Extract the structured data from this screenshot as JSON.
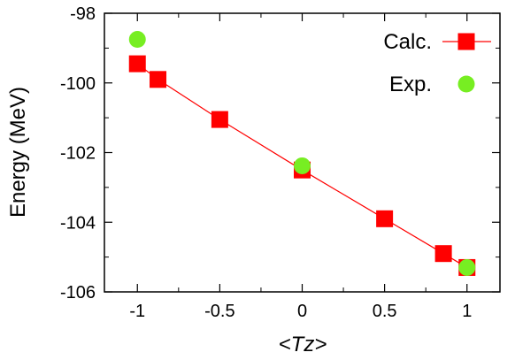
{
  "chart_data": {
    "type": "scatter",
    "xlabel": "<Tz>",
    "ylabel": "Energy (MeV)",
    "xlim": [
      -1.2,
      1.2
    ],
    "ylim": [
      -106,
      -98
    ],
    "xticks": [
      -1,
      -0.5,
      0,
      0.5,
      1
    ],
    "xtick_labels": [
      "-1",
      "-0.5",
      "0",
      "0.5",
      "1"
    ],
    "yticks": [
      -98,
      -100,
      -102,
      -104,
      -106
    ],
    "ytick_labels": [
      "-98",
      "-100",
      "-102",
      "-104",
      "-106"
    ],
    "legend_position": "top-right",
    "grid": false,
    "series": [
      {
        "name": "Calc.",
        "color": "#ff0000",
        "marker": "square",
        "line": true,
        "x": [
          -1,
          -0.875,
          -0.5,
          0,
          0.5,
          0.857,
          1
        ],
        "y": [
          -99.45,
          -99.9,
          -101.05,
          -102.5,
          -103.9,
          -104.9,
          -105.3
        ]
      },
      {
        "name": "Exp.",
        "color": "#77ee22",
        "marker": "circle",
        "line": false,
        "x": [
          -1,
          0,
          1
        ],
        "y": [
          -98.75,
          -102.38,
          -105.3
        ]
      }
    ]
  }
}
